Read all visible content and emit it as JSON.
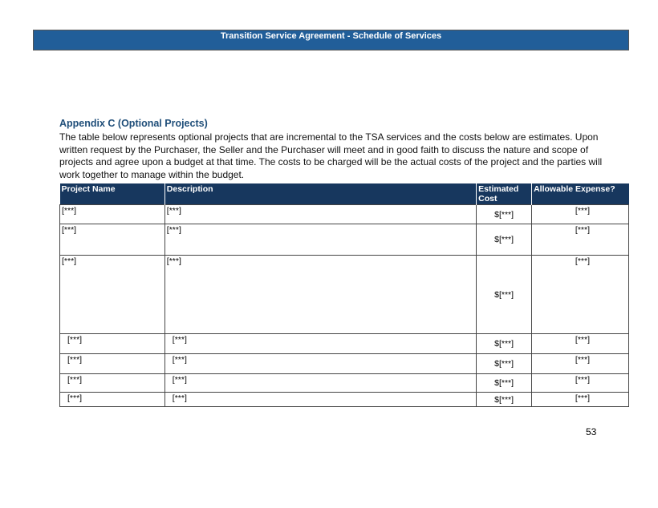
{
  "header": {
    "title": "Transition Service Agreement - Schedule of Services"
  },
  "section": {
    "heading": "Appendix C (Optional Projects)",
    "body": "The table below represents optional projects that are incremental to the TSA services and the costs below are estimates. Upon written request by the Purchaser, the Seller and the Purchaser will meet and in good faith to discuss the nature and scope of projects and agree upon a budget at that time. The costs to be charged will be the actual costs of the project and the parties will work together to manage within the budget."
  },
  "table": {
    "headers": [
      "Project Name",
      "Description",
      "Estimated Cost",
      "Allowable Expense?"
    ],
    "rows": [
      [
        "[***]",
        "[***]",
        "$[***]",
        "[***]"
      ],
      [
        "[***]",
        "[***]",
        "$[***]",
        "[***]"
      ],
      [
        "[***]",
        "[***]",
        "$[***]",
        "[***]"
      ],
      [
        "[***]",
        "[***]",
        "$[***]",
        "[***]"
      ],
      [
        "[***]",
        "[***]",
        "$[***]",
        "[***]"
      ],
      [
        "[***]",
        "[***]",
        "$[***]",
        "[***]"
      ],
      [
        "[***]",
        "[***]",
        "$[***]",
        "[***]"
      ]
    ]
  },
  "footer": {
    "page_number": "53"
  }
}
